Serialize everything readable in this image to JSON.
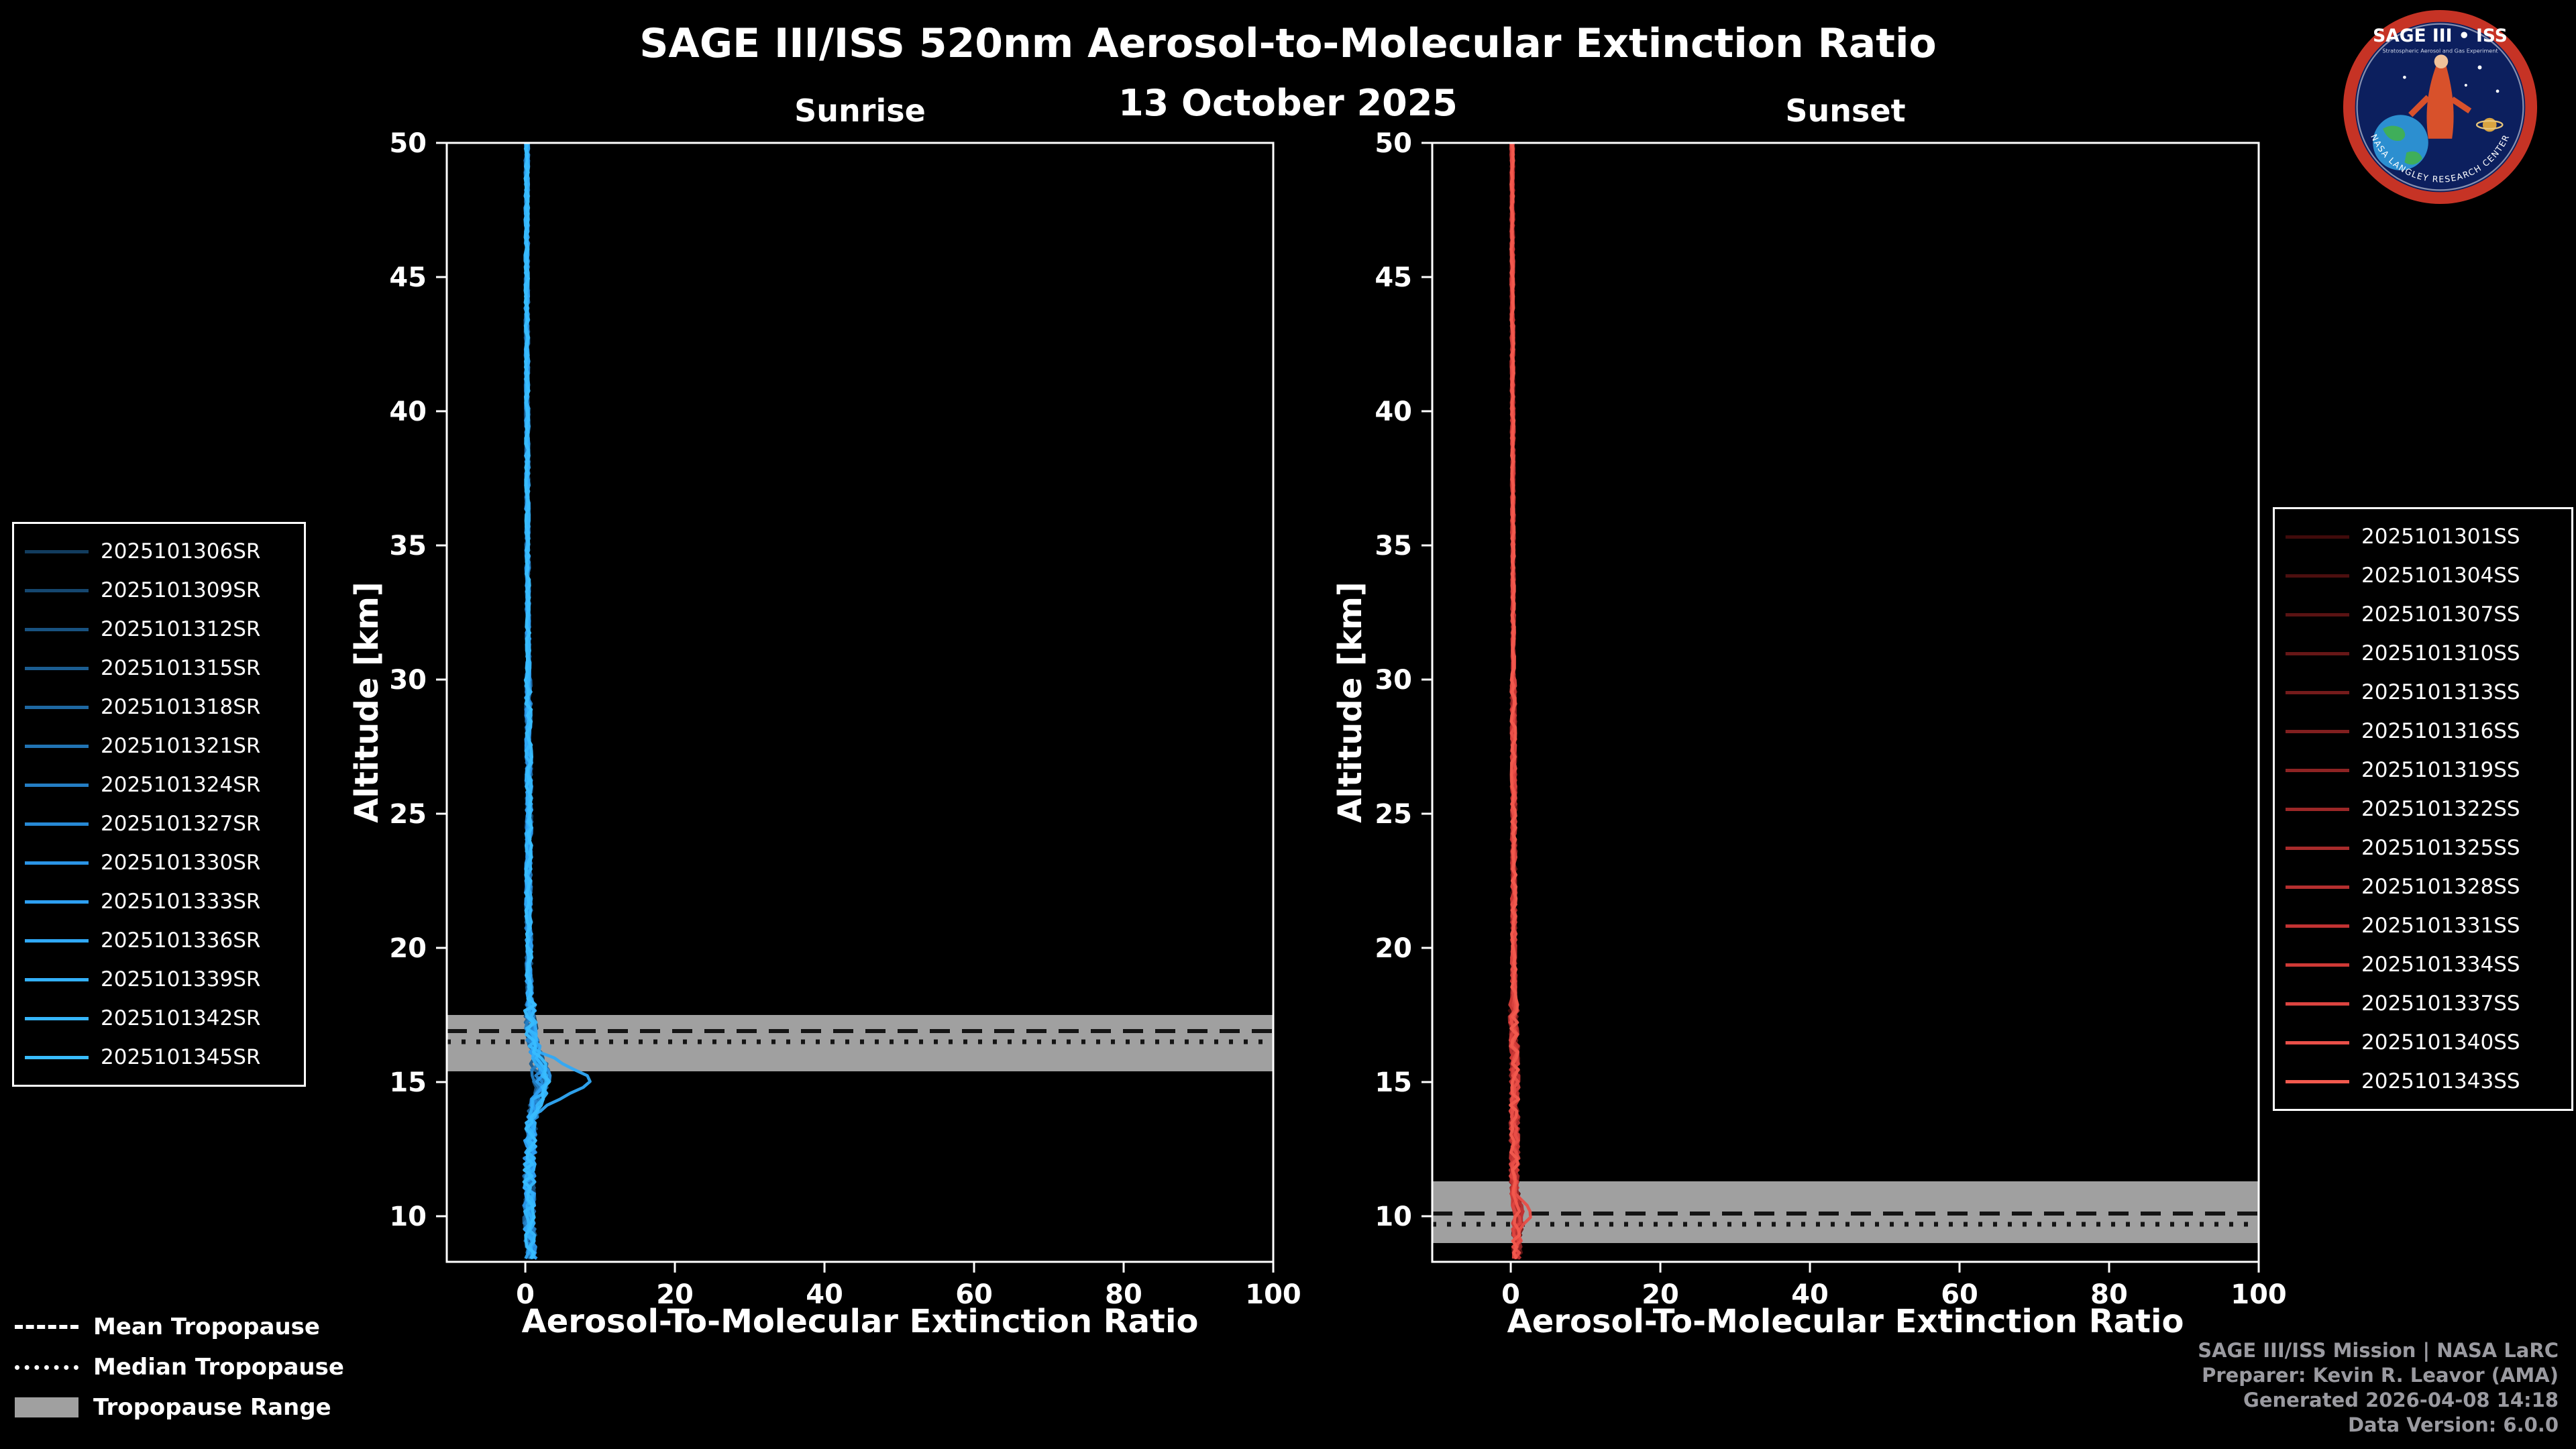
{
  "header": {
    "title": "SAGE III/ISS 520nm Aerosol-to-Molecular Extinction Ratio",
    "date": "13 October 2025"
  },
  "logo": {
    "title": "SAGE III • ISS",
    "subtitle": "Stratospheric Aerosol and Gas Experiment",
    "ring_text": "NASA LANGLEY RESEARCH CENTER"
  },
  "tropopause_legend": {
    "mean": "Mean Tropopause",
    "median": "Median Tropopause",
    "range": "Tropopause Range"
  },
  "attribution": {
    "line1": "SAGE III/ISS Mission | NASA LaRC",
    "line2": "Preparer: Kevin R. Leavor (AMA)",
    "line3": "Generated 2026-04-08 14:18",
    "line4": "Data Version: 6.0.0"
  },
  "chart_data": {
    "type": "line",
    "title": "SAGE III/ISS 520nm Aerosol-to-Molecular Extinction Ratio",
    "subtitle": "13 October 2025",
    "band_color": "#a0a0a0",
    "tropopause_line_color": "#141414",
    "panels": [
      {
        "id": "sunrise",
        "title": "Sunrise",
        "xlabel": "Aerosol-To-Molecular Extinction Ratio",
        "ylabel": "Altitude [km]",
        "xlim": [
          -10.5,
          100
        ],
        "ylim": [
          8.3,
          50
        ],
        "xticks": [
          0,
          20,
          40,
          60,
          80,
          100
        ],
        "yticks": [
          10,
          15,
          20,
          25,
          30,
          35,
          40,
          45,
          50
        ],
        "grid": false,
        "tropopause": {
          "mean": 16.9,
          "median": 16.5,
          "range": [
            15.4,
            17.5
          ]
        },
        "profile_alts": [
          8.3,
          9,
          10,
          11,
          12,
          13,
          14,
          15,
          16,
          17,
          18,
          19,
          20,
          22,
          25,
          30,
          35,
          40,
          45,
          50
        ],
        "profile_vals": [
          0.8,
          0.7,
          0.5,
          0.5,
          0.6,
          0.7,
          0.9,
          1.2,
          1.0,
          0.8,
          0.6,
          0.5,
          0.5,
          0.4,
          0.5,
          0.4,
          0.3,
          0.25,
          0.2,
          0.2
        ],
        "noise": 0.45,
        "seed": 11,
        "spike": {
          "alt": 15.1,
          "width": 0.8,
          "max": 7.0,
          "series_index": 10,
          "others": 0.5
        },
        "series": [
          {
            "name": "2025101306SR",
            "color": "#123c5e"
          },
          {
            "name": "2025101309SR",
            "color": "#15476f"
          },
          {
            "name": "2025101312SR",
            "color": "#185280"
          },
          {
            "name": "2025101315SR",
            "color": "#1b5d91"
          },
          {
            "name": "2025101318SR",
            "color": "#1e68a2"
          },
          {
            "name": "2025101321SR",
            "color": "#2173b3"
          },
          {
            "name": "2025101324SR",
            "color": "#247ec4"
          },
          {
            "name": "2025101327SR",
            "color": "#2789d5"
          },
          {
            "name": "2025101330SR",
            "color": "#2a94e6"
          },
          {
            "name": "2025101333SR",
            "color": "#2d9ff2"
          },
          {
            "name": "2025101336SR",
            "color": "#30a9f7"
          },
          {
            "name": "2025101339SR",
            "color": "#33b0fa"
          },
          {
            "name": "2025101342SR",
            "color": "#36b6fc"
          },
          {
            "name": "2025101345SR",
            "color": "#39bdff"
          }
        ]
      },
      {
        "id": "sunset",
        "title": "Sunset",
        "xlabel": "Aerosol-To-Molecular Extinction Ratio",
        "ylabel": "Altitude [km]",
        "xlim": [
          -10.5,
          100
        ],
        "ylim": [
          8.3,
          50
        ],
        "xticks": [
          0,
          20,
          40,
          60,
          80,
          100
        ],
        "yticks": [
          10,
          15,
          20,
          25,
          30,
          35,
          40,
          45,
          50
        ],
        "grid": false,
        "tropopause": {
          "mean": 10.1,
          "median": 9.7,
          "range": [
            9.0,
            11.3
          ]
        },
        "profile_alts": [
          8.3,
          9,
          10,
          11,
          12,
          13,
          14,
          15,
          16,
          17,
          18,
          19,
          20,
          22,
          25,
          30,
          35,
          40,
          45,
          50
        ],
        "profile_vals": [
          0.9,
          0.8,
          0.6,
          0.5,
          0.5,
          0.5,
          0.5,
          0.5,
          0.5,
          0.4,
          0.4,
          0.4,
          0.4,
          0.4,
          0.4,
          0.35,
          0.3,
          0.25,
          0.2,
          0.2
        ],
        "noise": 0.35,
        "seed": 77,
        "spike": {
          "alt": 10.0,
          "width": 0.55,
          "max": 2.2,
          "series_index": 13,
          "others": 0.35
        },
        "series": [
          {
            "name": "2025101301SS",
            "color": "#400b0b"
          },
          {
            "name": "2025101304SS",
            "color": "#4d0f0f"
          },
          {
            "name": "2025101307SS",
            "color": "#5a1313"
          },
          {
            "name": "2025101310SS",
            "color": "#671717"
          },
          {
            "name": "2025101313SS",
            "color": "#741b1b"
          },
          {
            "name": "2025101316SS",
            "color": "#811f1f"
          },
          {
            "name": "2025101319SS",
            "color": "#8e2323"
          },
          {
            "name": "2025101322SS",
            "color": "#9b2727"
          },
          {
            "name": "2025101325SS",
            "color": "#a82b2b"
          },
          {
            "name": "2025101328SS",
            "color": "#b52f2f"
          },
          {
            "name": "2025101331SS",
            "color": "#c23333"
          },
          {
            "name": "2025101334SS",
            "color": "#cf3a36"
          },
          {
            "name": "2025101337SS",
            "color": "#dc4440"
          },
          {
            "name": "2025101340SS",
            "color": "#e94f48"
          },
          {
            "name": "2025101343SS",
            "color": "#f25a4e"
          }
        ]
      }
    ]
  }
}
